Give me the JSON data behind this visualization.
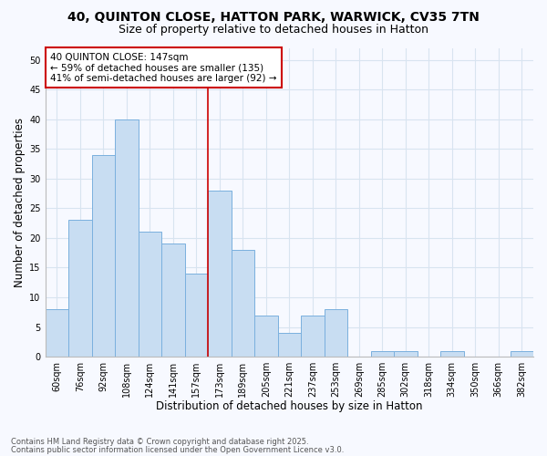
{
  "title_line1": "40, QUINTON CLOSE, HATTON PARK, WARWICK, CV35 7TN",
  "title_line2": "Size of property relative to detached houses in Hatton",
  "xlabel": "Distribution of detached houses by size in Hatton",
  "ylabel": "Number of detached properties",
  "categories": [
    "60sqm",
    "76sqm",
    "92sqm",
    "108sqm",
    "124sqm",
    "141sqm",
    "157sqm",
    "173sqm",
    "189sqm",
    "205sqm",
    "221sqm",
    "237sqm",
    "253sqm",
    "269sqm",
    "285sqm",
    "302sqm",
    "318sqm",
    "334sqm",
    "350sqm",
    "366sqm",
    "382sqm"
  ],
  "values": [
    8,
    23,
    34,
    40,
    21,
    19,
    14,
    28,
    18,
    7,
    4,
    7,
    8,
    0,
    1,
    1,
    0,
    1,
    0,
    0,
    1
  ],
  "bar_color": "#c8ddf2",
  "bar_edge_color": "#7ab0de",
  "vline_x": 6.5,
  "vline_color": "#cc0000",
  "annotation_text": "40 QUINTON CLOSE: 147sqm\n← 59% of detached houses are smaller (135)\n41% of semi-detached houses are larger (92) →",
  "annotation_box_facecolor": "#ffffff",
  "annotation_box_edgecolor": "#cc0000",
  "ylim": [
    0,
    52
  ],
  "yticks": [
    0,
    5,
    10,
    15,
    20,
    25,
    30,
    35,
    40,
    45,
    50
  ],
  "background_color": "#f7f9ff",
  "grid_color": "#d8e4f0",
  "footnote_line1": "Contains HM Land Registry data © Crown copyright and database right 2025.",
  "footnote_line2": "Contains public sector information licensed under the Open Government Licence v3.0.",
  "title_fontsize": 10,
  "subtitle_fontsize": 9,
  "axis_label_fontsize": 8.5,
  "tick_fontsize": 7,
  "annot_fontsize": 7.5
}
